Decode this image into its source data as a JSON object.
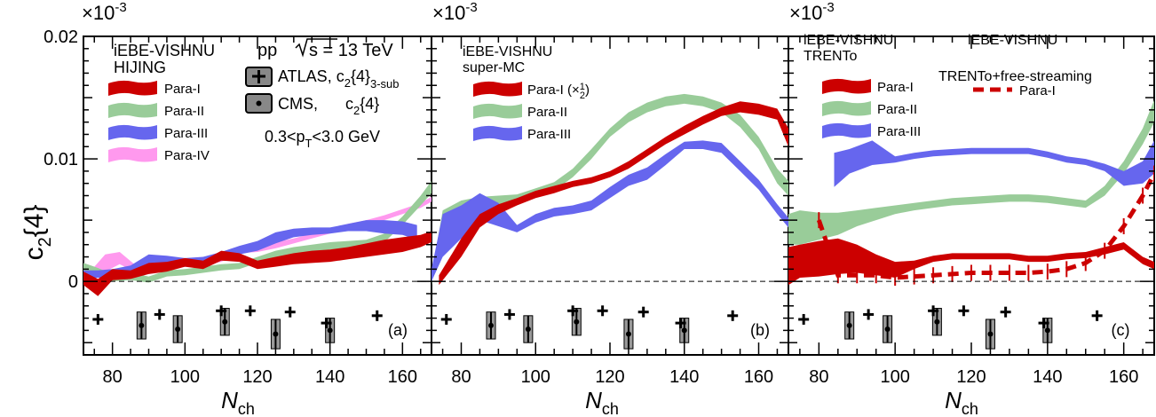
{
  "y_axis": {
    "label_main": "c",
    "label_sub": "2",
    "label_rest": "{4}",
    "multiplier_base": "×10",
    "multiplier_exp": "-3",
    "ticks": [
      {
        "v": 0,
        "label": "0"
      },
      {
        "v": 0.01,
        "label": "0.01"
      },
      {
        "v": 0.02,
        "label": "0.02"
      }
    ],
    "ylim": [
      -0.006,
      0.02
    ]
  },
  "x_axis": {
    "label_main": "N",
    "label_sub": "ch",
    "xlim": [
      72,
      168
    ],
    "ticks": [
      {
        "v": 80,
        "label": "80"
      },
      {
        "v": 100,
        "label": "100"
      },
      {
        "v": 120,
        "label": "120"
      },
      {
        "v": 140,
        "label": "140"
      },
      {
        "v": 160,
        "label": "160"
      }
    ]
  },
  "colors": {
    "para1": "#cc0000",
    "para2": "#99cc99",
    "para3": "#6666ee",
    "para4": "#ff99ee",
    "data": "#000000",
    "cms_box": "#999999"
  },
  "experimental": {
    "atlas_label": "ATLAS, c",
    "atlas_sub": "2",
    "atlas_rest": "{4}",
    "atlas_sub2": "3-sub",
    "cms_label": "CMS,",
    "cms_main": "c",
    "cms_sub": "2",
    "cms_rest": "{4}",
    "atlas_points": [
      {
        "x": 76,
        "y": -0.0031
      },
      {
        "x": 93,
        "y": -0.0027
      },
      {
        "x": 110,
        "y": -0.0024
      },
      {
        "x": 118,
        "y": -0.0024
      },
      {
        "x": 129,
        "y": -0.0025
      },
      {
        "x": 139,
        "y": -0.0034
      },
      {
        "x": 153,
        "y": -0.0028
      }
    ],
    "cms_points": [
      {
        "x": 88,
        "y": -0.0036,
        "e": 0.0011
      },
      {
        "x": 98,
        "y": -0.0039,
        "e": 0.0011
      },
      {
        "x": 111,
        "y": -0.0033,
        "e": 0.0011
      },
      {
        "x": 125,
        "y": -0.0043,
        "e": 0.0012
      },
      {
        "x": 140,
        "y": -0.004,
        "e": 0.001
      }
    ]
  },
  "panels": [
    {
      "tag": "(a)",
      "model": "iEBE-VISHNU",
      "subtitle": "HIJING",
      "system": "pp",
      "energy_label": "s = 13 TeV",
      "pt_label_pre": "0.3<p",
      "pt_label_sub": "T",
      "pt_label_post": "<3.0 GeV",
      "legend": [
        {
          "label": "Para-I",
          "color": "#cc0000"
        },
        {
          "label": "Para-II",
          "color": "#99cc99"
        },
        {
          "label": "Para-III",
          "color": "#6666ee"
        },
        {
          "label": "Para-IV",
          "color": "#ff99ee"
        }
      ]
    },
    {
      "tag": "(b)",
      "model": "iEBE-VISHNU",
      "subtitle": "super-MC",
      "legend": [
        {
          "label": "Para-I (×",
          "label_frac_num": "1",
          "label_frac_den": "2",
          "label_end": ")",
          "color": "#cc0000"
        },
        {
          "label": "Para-II",
          "color": "#99cc99"
        },
        {
          "label": "Para-III",
          "color": "#6666ee"
        }
      ]
    },
    {
      "tag": "(c)",
      "model": "iEBE-VISHNU",
      "subtitle": "TRENTo",
      "model2": "iEBE-VISHNU",
      "subtitle2": "TRENTo+free-streaming",
      "legend": [
        {
          "label": "Para-I",
          "color": "#cc0000"
        },
        {
          "label": "Para-II",
          "color": "#99cc99"
        },
        {
          "label": "Para-III",
          "color": "#6666ee"
        }
      ],
      "legend2": [
        {
          "label": "Para-I",
          "color": "#cc0000"
        }
      ]
    }
  ],
  "chart_data": [
    {
      "type": "area",
      "panel": "(a)",
      "series": [
        {
          "name": "Para-I",
          "x": [
            72,
            76,
            80,
            85,
            90,
            95,
            100,
            105,
            110,
            115,
            120,
            125,
            130,
            135,
            140,
            145,
            150,
            155,
            160,
            165,
            168
          ],
          "lo": [
            -0.0003,
            -0.0012,
            0.0001,
            0.0002,
            0.0006,
            0.0008,
            0.0012,
            0.001,
            0.0017,
            0.0016,
            0.001,
            0.0012,
            0.0014,
            0.0015,
            0.0016,
            0.0018,
            0.002,
            0.0022,
            0.0024,
            0.0028,
            0.0032
          ],
          "hi": [
            0.0008,
            0.0002,
            0.001,
            0.0009,
            0.0015,
            0.0016,
            0.0019,
            0.0017,
            0.0025,
            0.0023,
            0.0017,
            0.002,
            0.0023,
            0.0025,
            0.0026,
            0.0028,
            0.0031,
            0.0034,
            0.0036,
            0.0038,
            0.0041
          ]
        },
        {
          "name": "Para-II",
          "x": [
            72,
            76,
            80,
            85,
            90,
            95,
            100,
            105,
            110,
            115,
            120,
            125,
            130,
            135,
            140,
            145,
            150,
            155,
            160,
            165,
            168
          ],
          "lo": [
            0.0008,
            0.0004,
            0.0,
            0.0001,
            -0.0001,
            0.0004,
            0.0005,
            0.0007,
            0.0009,
            0.001,
            0.0015,
            0.0019,
            0.0022,
            0.0024,
            0.0026,
            0.0027,
            0.0028,
            0.0032,
            0.0046,
            0.0062,
            0.0072
          ],
          "hi": [
            0.0015,
            0.0011,
            0.0006,
            0.0007,
            0.0004,
            0.0009,
            0.001,
            0.0012,
            0.0014,
            0.0015,
            0.002,
            0.0025,
            0.0028,
            0.003,
            0.0032,
            0.0033,
            0.0034,
            0.0039,
            0.0053,
            0.007,
            0.0082
          ]
        },
        {
          "name": "Para-III",
          "x": [
            72,
            76,
            80,
            85,
            90,
            95,
            100,
            105,
            110,
            115,
            120,
            125,
            130,
            135,
            140,
            145,
            150,
            155,
            160,
            164
          ],
          "lo": [
            0.0002,
            0.0003,
            0.0003,
            0.0006,
            0.0014,
            0.0013,
            0.0012,
            0.0013,
            0.0017,
            0.0022,
            0.0025,
            0.0031,
            0.0036,
            0.0038,
            0.0039,
            0.0041,
            0.0041,
            0.0039,
            0.0038,
            0.0034
          ],
          "hi": [
            0.0009,
            0.0009,
            0.001,
            0.0013,
            0.0022,
            0.0021,
            0.0019,
            0.002,
            0.0024,
            0.0029,
            0.0033,
            0.004,
            0.0043,
            0.0044,
            0.0044,
            0.0047,
            0.005,
            0.005,
            0.0049,
            0.0046
          ]
        },
        {
          "name": "Para-IV",
          "x": [
            72,
            75,
            78,
            82,
            86,
            90,
            95,
            100,
            105,
            110,
            115,
            120,
            125,
            130,
            135,
            140,
            145,
            150,
            155,
            160,
            165,
            168
          ],
          "lo": [
            0.0008,
            0.0004,
            0.0008,
            0.0014,
            0.0008,
            0.001,
            0.0011,
            0.0012,
            0.0013,
            0.0016,
            0.0023,
            0.0024,
            0.0027,
            0.0031,
            0.0035,
            0.0039,
            0.0043,
            0.0046,
            0.005,
            0.0055,
            0.006,
            0.0065
          ],
          "hi": [
            0.0015,
            0.0012,
            0.0022,
            0.0024,
            0.0014,
            0.0016,
            0.0016,
            0.0017,
            0.0018,
            0.0021,
            0.0027,
            0.0029,
            0.0032,
            0.0035,
            0.0039,
            0.0043,
            0.0047,
            0.005,
            0.0054,
            0.0059,
            0.0064,
            0.0069
          ]
        }
      ]
    },
    {
      "type": "area",
      "panel": "(b)",
      "series": [
        {
          "name": "Para-I (×½)",
          "x": [
            74,
            80,
            85,
            90,
            95,
            100,
            105,
            110,
            115,
            120,
            125,
            130,
            135,
            140,
            145,
            150,
            155,
            160,
            165,
            168
          ],
          "lo": [
            -0.0003,
            0.002,
            0.0044,
            0.0055,
            0.0062,
            0.0068,
            0.0072,
            0.0077,
            0.008,
            0.0085,
            0.0092,
            0.0102,
            0.0112,
            0.012,
            0.0128,
            0.0135,
            0.0138,
            0.0136,
            0.0132,
            0.011
          ],
          "hi": [
            0.0005,
            0.0035,
            0.0055,
            0.0063,
            0.0068,
            0.0074,
            0.0078,
            0.0082,
            0.0085,
            0.009,
            0.0098,
            0.0108,
            0.0118,
            0.0127,
            0.0135,
            0.0142,
            0.0147,
            0.0145,
            0.0141,
            0.0125
          ]
        },
        {
          "name": "Para-II",
          "x": [
            72,
            75,
            80,
            85,
            90,
            95,
            100,
            105,
            110,
            115,
            120,
            125,
            130,
            135,
            140,
            145,
            150,
            155,
            160,
            165,
            168
          ],
          "lo": [
            -0.0003,
            0.005,
            0.0058,
            0.0062,
            0.0063,
            0.0064,
            0.0069,
            0.0074,
            0.0085,
            0.01,
            0.0118,
            0.013,
            0.0138,
            0.0143,
            0.0145,
            0.0143,
            0.0138,
            0.0126,
            0.0108,
            0.008,
            0.007
          ],
          "hi": [
            0.0005,
            0.0058,
            0.0066,
            0.0069,
            0.007,
            0.0071,
            0.0076,
            0.0081,
            0.0092,
            0.0108,
            0.0125,
            0.0138,
            0.0146,
            0.0151,
            0.0153,
            0.0151,
            0.0146,
            0.0136,
            0.0118,
            0.0092,
            0.0082
          ]
        },
        {
          "name": "Para-III",
          "x": [
            72,
            75,
            80,
            85,
            90,
            95,
            100,
            105,
            110,
            115,
            120,
            125,
            130,
            135,
            140,
            145,
            150,
            155,
            160,
            165,
            168
          ],
          "lo": [
            0.0,
            0.002,
            0.0035,
            0.005,
            0.0045,
            0.004,
            0.0048,
            0.0053,
            0.0055,
            0.0058,
            0.0068,
            0.0078,
            0.0083,
            0.0095,
            0.0108,
            0.0108,
            0.0105,
            0.009,
            0.0075,
            0.0055,
            0.0044
          ],
          "hi": [
            0.001,
            0.0055,
            0.0062,
            0.0072,
            0.0064,
            0.0046,
            0.0055,
            0.006,
            0.0062,
            0.0066,
            0.0077,
            0.0087,
            0.0093,
            0.0104,
            0.0114,
            0.0115,
            0.0113,
            0.0098,
            0.0083,
            0.0063,
            0.0052
          ]
        }
      ]
    },
    {
      "type": "area",
      "panel": "(c)",
      "series": [
        {
          "name": "Para-I",
          "x": [
            72,
            75,
            80,
            85,
            90,
            95,
            100,
            105,
            110,
            115,
            120,
            125,
            130,
            135,
            140,
            145,
            150,
            155,
            160,
            165,
            168
          ],
          "lo": [
            -0.0003,
            0.0003,
            0.0004,
            0.0006,
            0.0007,
            0.0005,
            0.0003,
            0.001,
            0.0016,
            0.0018,
            0.0018,
            0.0018,
            0.0018,
            0.0016,
            0.0016,
            0.0018,
            0.0019,
            0.0022,
            0.0026,
            0.0014,
            0.001
          ],
          "hi": [
            0.0028,
            0.003,
            0.0033,
            0.0035,
            0.003,
            0.0022,
            0.0016,
            0.0017,
            0.0021,
            0.0023,
            0.0023,
            0.0023,
            0.0023,
            0.0021,
            0.0021,
            0.0023,
            0.0024,
            0.0028,
            0.0032,
            0.002,
            0.0016
          ]
        },
        {
          "name": "Para-II",
          "x": [
            72,
            75,
            80,
            85,
            90,
            95,
            100,
            105,
            110,
            115,
            120,
            125,
            130,
            135,
            140,
            145,
            150,
            155,
            160,
            165,
            168
          ],
          "lo": [
            0.003,
            0.003,
            0.0034,
            0.0038,
            0.0045,
            0.005,
            0.0055,
            0.0058,
            0.006,
            0.0062,
            0.0063,
            0.0064,
            0.0065,
            0.0065,
            0.0064,
            0.0062,
            0.006,
            0.007,
            0.0088,
            0.0112,
            0.013
          ],
          "hi": [
            0.0055,
            0.0058,
            0.0056,
            0.0056,
            0.0058,
            0.006,
            0.0062,
            0.0064,
            0.0066,
            0.0068,
            0.0069,
            0.007,
            0.0071,
            0.0071,
            0.007,
            0.0068,
            0.0066,
            0.0078,
            0.0098,
            0.0125,
            0.0148
          ]
        },
        {
          "name": "Para-III",
          "x": [
            84,
            88,
            94,
            100,
            105,
            110,
            115,
            120,
            125,
            130,
            135,
            140,
            145,
            150,
            155,
            160,
            165,
            168
          ],
          "lo": [
            0.0077,
            0.0088,
            0.0095,
            0.0097,
            0.01,
            0.0102,
            0.0103,
            0.0104,
            0.0104,
            0.0104,
            0.0104,
            0.0101,
            0.0097,
            0.0095,
            0.009,
            0.0078,
            0.008,
            0.0088
          ],
          "hi": [
            0.0105,
            0.0108,
            0.0115,
            0.0102,
            0.0105,
            0.0107,
            0.0108,
            0.0109,
            0.0109,
            0.0109,
            0.0109,
            0.0106,
            0.0102,
            0.01,
            0.0096,
            0.009,
            0.0098,
            0.0115
          ]
        }
      ],
      "dashed_series": [
        {
          "name": "Para-I",
          "x": [
            80,
            85,
            90,
            95,
            100,
            105,
            110,
            115,
            120,
            125,
            130,
            135,
            140,
            145,
            150,
            155,
            160,
            165,
            168
          ],
          "y": [
            0.005,
            0.0005,
            0.0005,
            0.0005,
            0.0003,
            0.0004,
            0.0005,
            0.0006,
            0.0007,
            0.0007,
            0.0007,
            0.0007,
            0.0008,
            0.001,
            0.0015,
            0.0025,
            0.0045,
            0.007,
            0.0088
          ]
        }
      ]
    }
  ]
}
